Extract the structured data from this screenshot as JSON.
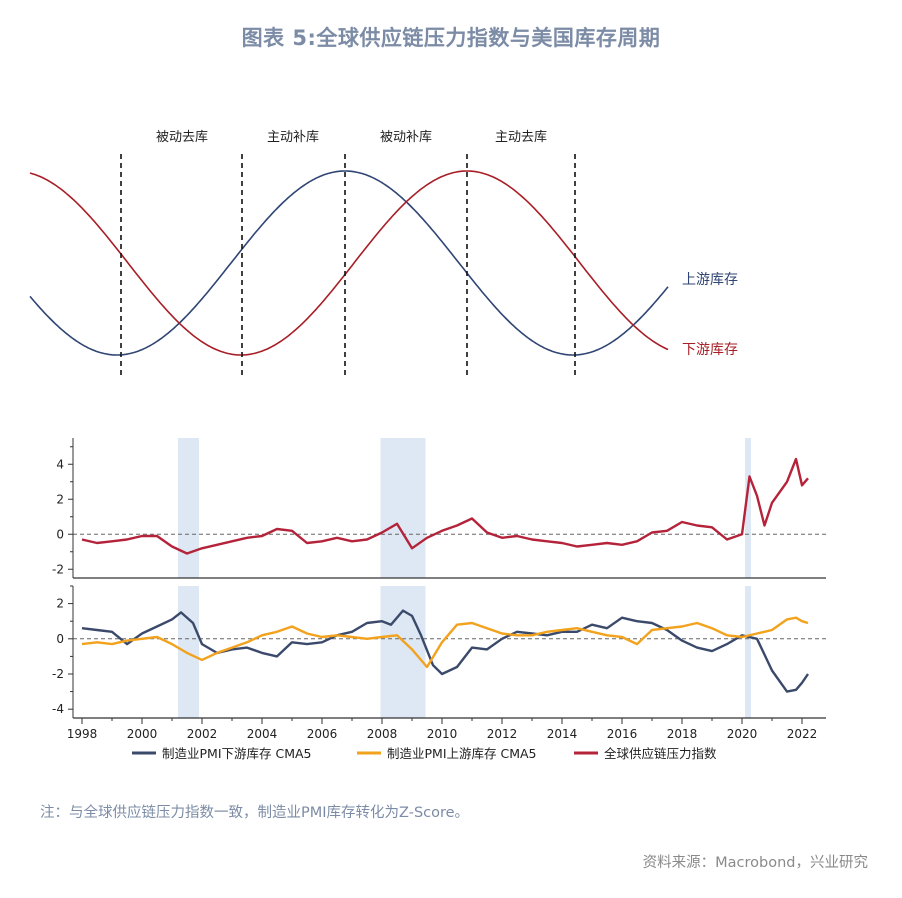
{
  "title": "图表 5:全球供应链压力指数与美国库存周期",
  "colors": {
    "upstream": "#2f4574",
    "downstream": "#a81e26",
    "pmi_downstream": "#3b4a6b",
    "pmi_upstream": "#f2a21c",
    "gscpi": "#b4233a",
    "shade": "#dde8f4",
    "note": "#7c8ca6"
  },
  "chart_data": [
    {
      "type": "line",
      "description_free": true,
      "phase_labels": [
        "被动去库",
        "主动补库",
        "被动补库",
        "主动去库"
      ],
      "series": [
        {
          "name": "上游库存",
          "color": "#2f4574"
        },
        {
          "name": "下游库存",
          "color": "#a81e26"
        }
      ]
    },
    {
      "type": "line",
      "xlim": [
        1997.7,
        2022.8
      ],
      "ylim": [
        -2.5,
        5.5
      ],
      "yticks": [
        -2,
        0,
        2,
        4
      ],
      "shaded_periods": [
        [
          2001.2,
          2001.9
        ],
        [
          2007.95,
          2009.45
        ],
        [
          2020.1,
          2020.3
        ]
      ],
      "series": [
        {
          "name": "全球供应链压力指数",
          "color": "#b4233a",
          "points": [
            [
              1998.0,
              -0.3
            ],
            [
              1998.5,
              -0.5
            ],
            [
              1999.0,
              -0.4
            ],
            [
              1999.5,
              -0.3
            ],
            [
              2000.0,
              -0.1
            ],
            [
              2000.5,
              -0.1
            ],
            [
              2001.0,
              -0.7
            ],
            [
              2001.5,
              -1.1
            ],
            [
              2002.0,
              -0.8
            ],
            [
              2002.5,
              -0.6
            ],
            [
              2003.0,
              -0.4
            ],
            [
              2003.5,
              -0.2
            ],
            [
              2004.0,
              -0.1
            ],
            [
              2004.5,
              0.3
            ],
            [
              2005.0,
              0.2
            ],
            [
              2005.5,
              -0.5
            ],
            [
              2006.0,
              -0.4
            ],
            [
              2006.5,
              -0.2
            ],
            [
              2007.0,
              -0.4
            ],
            [
              2007.5,
              -0.3
            ],
            [
              2008.0,
              0.1
            ],
            [
              2008.5,
              0.6
            ],
            [
              2009.0,
              -0.8
            ],
            [
              2009.5,
              -0.2
            ],
            [
              2010.0,
              0.2
            ],
            [
              2010.5,
              0.5
            ],
            [
              2011.0,
              0.9
            ],
            [
              2011.5,
              0.1
            ],
            [
              2012.0,
              -0.2
            ],
            [
              2012.5,
              -0.1
            ],
            [
              2013.0,
              -0.3
            ],
            [
              2013.5,
              -0.4
            ],
            [
              2014.0,
              -0.5
            ],
            [
              2014.5,
              -0.7
            ],
            [
              2015.0,
              -0.6
            ],
            [
              2015.5,
              -0.5
            ],
            [
              2016.0,
              -0.6
            ],
            [
              2016.5,
              -0.4
            ],
            [
              2017.0,
              0.1
            ],
            [
              2017.5,
              0.2
            ],
            [
              2018.0,
              0.7
            ],
            [
              2018.5,
              0.5
            ],
            [
              2019.0,
              0.4
            ],
            [
              2019.5,
              -0.3
            ],
            [
              2020.0,
              0.0
            ],
            [
              2020.25,
              3.3
            ],
            [
              2020.5,
              2.2
            ],
            [
              2020.75,
              0.5
            ],
            [
              2021.0,
              1.8
            ],
            [
              2021.5,
              3.0
            ],
            [
              2021.8,
              4.3
            ],
            [
              2022.0,
              2.8
            ],
            [
              2022.2,
              3.2
            ]
          ]
        },
        {
          "name": "",
          "color": "#555555",
          "style": "zero-line"
        }
      ]
    },
    {
      "type": "line",
      "xlim": [
        1997.7,
        2022.8
      ],
      "ylim": [
        -4.5,
        3.0
      ],
      "yticks": [
        -4,
        -2,
        0,
        2
      ],
      "xticks": [
        1998,
        2000,
        2002,
        2004,
        2006,
        2008,
        2010,
        2012,
        2014,
        2016,
        2018,
        2020,
        2022
      ],
      "shaded_periods": [
        [
          2001.2,
          2001.9
        ],
        [
          2007.95,
          2009.45
        ],
        [
          2020.1,
          2020.3
        ]
      ],
      "series": [
        {
          "name": "制造业PMI下游库存 CMA5",
          "color": "#3b4a6b",
          "points": [
            [
              1998.0,
              0.6
            ],
            [
              1998.5,
              0.5
            ],
            [
              1999.0,
              0.4
            ],
            [
              1999.5,
              -0.3
            ],
            [
              2000.0,
              0.3
            ],
            [
              2000.5,
              0.7
            ],
            [
              2001.0,
              1.1
            ],
            [
              2001.3,
              1.5
            ],
            [
              2001.7,
              0.9
            ],
            [
              2002.0,
              -0.3
            ],
            [
              2002.5,
              -0.8
            ],
            [
              2003.0,
              -0.6
            ],
            [
              2003.5,
              -0.5
            ],
            [
              2004.0,
              -0.8
            ],
            [
              2004.5,
              -1.0
            ],
            [
              2005.0,
              -0.2
            ],
            [
              2005.5,
              -0.3
            ],
            [
              2006.0,
              -0.2
            ],
            [
              2006.5,
              0.2
            ],
            [
              2007.0,
              0.4
            ],
            [
              2007.5,
              0.9
            ],
            [
              2008.0,
              1.0
            ],
            [
              2008.3,
              0.8
            ],
            [
              2008.7,
              1.6
            ],
            [
              2009.0,
              1.3
            ],
            [
              2009.3,
              0.2
            ],
            [
              2009.7,
              -1.5
            ],
            [
              2010.0,
              -2.0
            ],
            [
              2010.5,
              -1.6
            ],
            [
              2011.0,
              -0.5
            ],
            [
              2011.5,
              -0.6
            ],
            [
              2012.0,
              0.0
            ],
            [
              2012.5,
              0.4
            ],
            [
              2013.0,
              0.3
            ],
            [
              2013.5,
              0.2
            ],
            [
              2014.0,
              0.4
            ],
            [
              2014.5,
              0.4
            ],
            [
              2015.0,
              0.8
            ],
            [
              2015.5,
              0.6
            ],
            [
              2016.0,
              1.2
            ],
            [
              2016.5,
              1.0
            ],
            [
              2017.0,
              0.9
            ],
            [
              2017.5,
              0.5
            ],
            [
              2018.0,
              -0.1
            ],
            [
              2018.5,
              -0.5
            ],
            [
              2019.0,
              -0.7
            ],
            [
              2019.5,
              -0.3
            ],
            [
              2020.0,
              0.2
            ],
            [
              2020.5,
              0.0
            ],
            [
              2021.0,
              -1.8
            ],
            [
              2021.5,
              -3.0
            ],
            [
              2021.8,
              -2.9
            ],
            [
              2022.0,
              -2.5
            ],
            [
              2022.2,
              -2.0
            ]
          ]
        },
        {
          "name": "制造业PMI上游库存 CMA5",
          "color": "#f2a21c",
          "points": [
            [
              1998.0,
              -0.3
            ],
            [
              1998.5,
              -0.2
            ],
            [
              1999.0,
              -0.3
            ],
            [
              1999.5,
              -0.1
            ],
            [
              2000.0,
              0.0
            ],
            [
              2000.5,
              0.1
            ],
            [
              2001.0,
              -0.3
            ],
            [
              2001.5,
              -0.8
            ],
            [
              2002.0,
              -1.2
            ],
            [
              2002.5,
              -0.8
            ],
            [
              2003.0,
              -0.5
            ],
            [
              2003.5,
              -0.2
            ],
            [
              2004.0,
              0.2
            ],
            [
              2004.5,
              0.4
            ],
            [
              2005.0,
              0.7
            ],
            [
              2005.5,
              0.3
            ],
            [
              2006.0,
              0.1
            ],
            [
              2006.5,
              0.2
            ],
            [
              2007.0,
              0.1
            ],
            [
              2007.5,
              0.0
            ],
            [
              2008.0,
              0.1
            ],
            [
              2008.5,
              0.2
            ],
            [
              2009.0,
              -0.6
            ],
            [
              2009.5,
              -1.6
            ],
            [
              2010.0,
              -0.2
            ],
            [
              2010.5,
              0.8
            ],
            [
              2011.0,
              0.9
            ],
            [
              2011.5,
              0.6
            ],
            [
              2012.0,
              0.3
            ],
            [
              2012.5,
              0.2
            ],
            [
              2013.0,
              0.2
            ],
            [
              2013.5,
              0.4
            ],
            [
              2014.0,
              0.5
            ],
            [
              2014.5,
              0.6
            ],
            [
              2015.0,
              0.4
            ],
            [
              2015.5,
              0.2
            ],
            [
              2016.0,
              0.1
            ],
            [
              2016.5,
              -0.3
            ],
            [
              2017.0,
              0.5
            ],
            [
              2017.5,
              0.6
            ],
            [
              2018.0,
              0.7
            ],
            [
              2018.5,
              0.9
            ],
            [
              2019.0,
              0.6
            ],
            [
              2019.5,
              0.2
            ],
            [
              2020.0,
              0.1
            ],
            [
              2020.5,
              0.3
            ],
            [
              2021.0,
              0.5
            ],
            [
              2021.5,
              1.1
            ],
            [
              2021.8,
              1.2
            ],
            [
              2022.0,
              1.0
            ],
            [
              2022.2,
              0.9
            ]
          ]
        }
      ]
    }
  ],
  "legend": {
    "items": [
      {
        "label": "制造业PMI下游库存 CMA5",
        "color": "#3b4a6b"
      },
      {
        "label": "制造业PMI上游库存 CMA5",
        "color": "#f2a21c"
      },
      {
        "label": "全球供应链压力指数",
        "color": "#b4233a"
      }
    ]
  },
  "note": "注：与全球供应链压力指数一致，制造业PMI库存转化为Z-Score。",
  "source": "资料来源：Macrobond，兴业研究"
}
